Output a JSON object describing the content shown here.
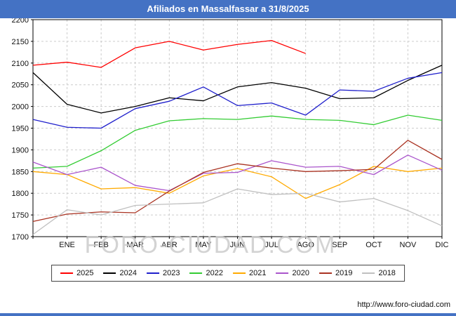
{
  "page": {
    "title": "Afiliados en Massalfassar a 31/8/2025",
    "watermark": "FORO-CIUDAD.COM",
    "url": "http://www.foro-ciudad.com",
    "title_bar_color": "#4472c4"
  },
  "chart_data": {
    "type": "line",
    "title": "Afiliados en Massalfassar a 31/8/2025",
    "xlabel": "",
    "ylabel": "",
    "ylim": [
      1700,
      2200
    ],
    "ytick_step": 50,
    "grid": true,
    "legend_position": "bottom",
    "months": [
      "ENE",
      "FEB",
      "MAR",
      "ABR",
      "MAY",
      "JUN",
      "JUL",
      "AGO",
      "SEP",
      "OCT",
      "NOV",
      "DIC"
    ],
    "x_note": "each series has one point at the left axis edge followed by one point per month gridline",
    "series": [
      {
        "name": "2025",
        "color": "#ff0000",
        "values": [
          2095,
          2102,
          2090,
          2135,
          2150,
          2130,
          2143,
          2152,
          2122
        ]
      },
      {
        "name": "2024",
        "color": "#000000",
        "values": [
          2078,
          2005,
          1985,
          2000,
          2020,
          2013,
          2045,
          2055,
          2042,
          2018,
          2020,
          2060,
          2095
        ]
      },
      {
        "name": "2023",
        "color": "#2020cc",
        "values": [
          1970,
          1952,
          1950,
          1995,
          2012,
          2045,
          2002,
          2008,
          1980,
          2038,
          2035,
          2065,
          2078
        ]
      },
      {
        "name": "2022",
        "color": "#33cc33",
        "values": [
          1858,
          1862,
          1898,
          1945,
          1967,
          1972,
          1970,
          1978,
          1970,
          1968,
          1958,
          1980,
          1968
        ]
      },
      {
        "name": "2021",
        "color": "#ffaa00",
        "values": [
          1850,
          1843,
          1810,
          1813,
          1800,
          1840,
          1857,
          1838,
          1788,
          1820,
          1862,
          1850,
          1858
        ]
      },
      {
        "name": "2020",
        "color": "#aa55cc",
        "values": [
          1872,
          1843,
          1860,
          1818,
          1806,
          1846,
          1848,
          1875,
          1860,
          1862,
          1843,
          1888,
          1853
        ]
      },
      {
        "name": "2019",
        "color": "#aa3322",
        "values": [
          1735,
          1752,
          1757,
          1755,
          1805,
          1848,
          1868,
          1858,
          1850,
          1852,
          1855,
          1922,
          1878
        ]
      },
      {
        "name": "2018",
        "color": "#c0c0c0",
        "values": [
          1705,
          1762,
          1750,
          1772,
          1775,
          1778,
          1810,
          1797,
          1800,
          1780,
          1788,
          1760,
          1725
        ]
      }
    ]
  }
}
